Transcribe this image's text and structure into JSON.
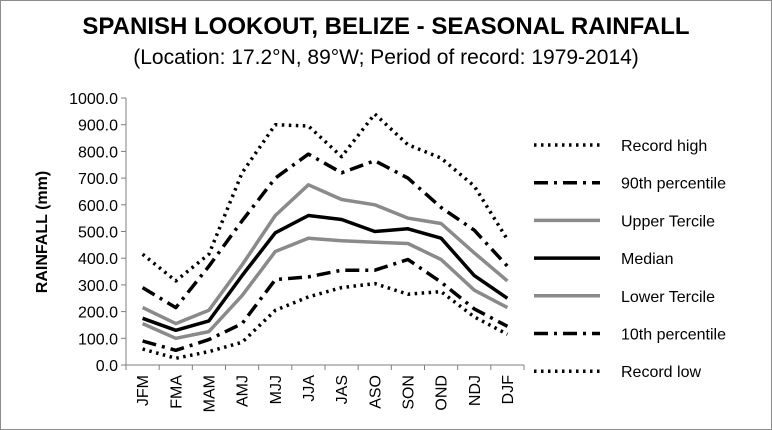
{
  "chart_data": {
    "type": "line",
    "title": "SPANISH LOOKOUT, BELIZE - SEASONAL RAINFALL",
    "subtitle": "(Location: 17.2°N, 89°W; Period of record: 1979-2014)",
    "xlabel": "",
    "ylabel": "RAINFALL (mm)",
    "ylim": [
      0,
      1000
    ],
    "ytick_step": 100,
    "grid": false,
    "legend_position": "right",
    "categories": [
      "JFM",
      "FMA",
      "MAM",
      "AMJ",
      "MJJ",
      "JJA",
      "JAS",
      "ASO",
      "SON",
      "OND",
      "NDJ",
      "DJF"
    ],
    "series": [
      {
        "name": "Record high",
        "color": "#000000",
        "style": "dotted",
        "values": [
          415,
          315,
          415,
          720,
          900,
          895,
          780,
          940,
          825,
          775,
          670,
          470
        ]
      },
      {
        "name": "90th percentile",
        "color": "#000000",
        "style": "dashdot",
        "values": [
          290,
          215,
          370,
          540,
          700,
          790,
          720,
          765,
          700,
          590,
          505,
          370
        ]
      },
      {
        "name": "Upper Tercile",
        "color": "#8a8a8a",
        "style": "solid",
        "values": [
          215,
          155,
          205,
          375,
          560,
          675,
          620,
          600,
          550,
          530,
          420,
          315
        ]
      },
      {
        "name": "Median",
        "color": "#000000",
        "style": "solid",
        "values": [
          175,
          130,
          165,
          335,
          495,
          560,
          545,
          500,
          510,
          475,
          335,
          250
        ]
      },
      {
        "name": "Lower Tercile",
        "color": "#8a8a8a",
        "style": "solid",
        "values": [
          155,
          100,
          125,
          260,
          425,
          475,
          465,
          460,
          455,
          395,
          280,
          215
        ]
      },
      {
        "name": "10th percentile",
        "color": "#000000",
        "style": "dashdot",
        "values": [
          90,
          55,
          95,
          155,
          320,
          330,
          355,
          355,
          395,
          310,
          210,
          145
        ]
      },
      {
        "name": "Record low",
        "color": "#000000",
        "style": "dotted",
        "values": [
          60,
          25,
          50,
          85,
          205,
          255,
          290,
          305,
          265,
          275,
          180,
          115
        ]
      }
    ]
  }
}
